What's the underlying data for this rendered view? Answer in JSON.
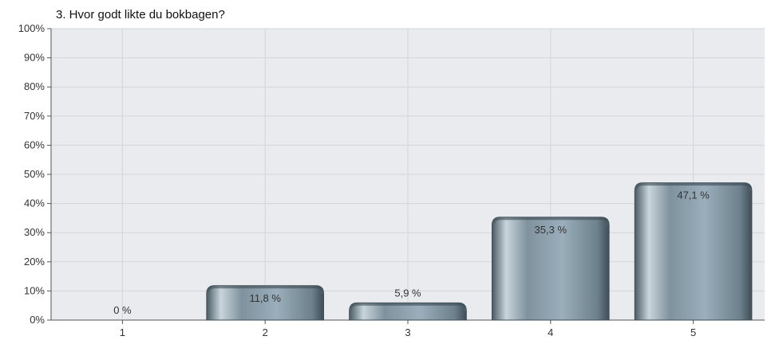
{
  "chart_data": {
    "type": "bar",
    "title": "3. Hvor godt likte du bokbagen?",
    "xlabel": "",
    "ylabel": "",
    "categories": [
      "1",
      "2",
      "3",
      "4",
      "5"
    ],
    "values": [
      0,
      11.8,
      5.9,
      35.3,
      47.1
    ],
    "data_labels": [
      "0 %",
      "11,8 %",
      "5,9 %",
      "35,3 %",
      "47,1 %"
    ],
    "ylim": [
      0,
      100
    ],
    "y_ticks": [
      "0%",
      "10%",
      "20%",
      "30%",
      "40%",
      "50%",
      "60%",
      "70%",
      "80%",
      "90%",
      "100%"
    ],
    "grid": true,
    "colors": {
      "bar_dark": "#4a5a64",
      "bar_mid": "#8fa3b0",
      "bar_light": "#c9d5dc",
      "plot_bg": "#e9ebee",
      "grid": "#d3d6da"
    }
  }
}
